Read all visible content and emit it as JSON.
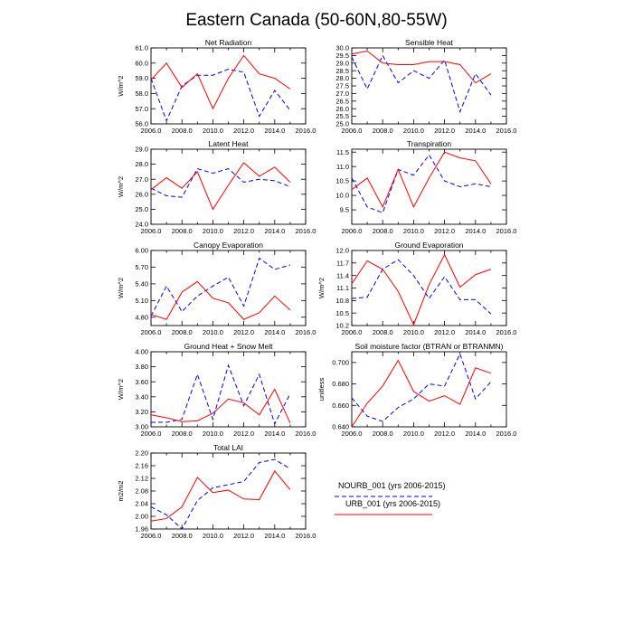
{
  "figure": {
    "title": "Eastern Canada (50-60N,80-55W)"
  },
  "series_styles": {
    "nourb": {
      "color": "#0000ff",
      "dash": "dashed"
    },
    "urb": {
      "color": "#ff0000",
      "dash": "solid"
    }
  },
  "legend": [
    {
      "key": "nourb",
      "label": "NOURB_001 (yrs 2006-2015)"
    },
    {
      "key": "urb",
      "label": "URB_001 (yrs 2006-2015)"
    }
  ],
  "chart_data": [
    {
      "type": "line",
      "title": "Net Radiation",
      "ylabel": "W/m^2",
      "xlim": [
        2006.0,
        2016.0
      ],
      "xticks": [
        "2006.0",
        "2008.0",
        "2010.0",
        "2012.0",
        "2014.0",
        "2016.0"
      ],
      "ylim": [
        56.0,
        61.0
      ],
      "yticks": [
        "56.0",
        "57.0",
        "58.0",
        "59.0",
        "60.0",
        "61.0"
      ],
      "x": [
        2006,
        2007,
        2008,
        2009,
        2010,
        2011,
        2012,
        2013,
        2014,
        2015
      ],
      "series": [
        {
          "name": "NOURB_001 (yrs 2006-2015)",
          "style": "nourb",
          "values": [
            59.0,
            56.2,
            58.5,
            59.2,
            59.2,
            59.6,
            59.4,
            56.5,
            58.2,
            56.9
          ]
        },
        {
          "name": "URB_001 (yrs 2006-2015)",
          "style": "urb",
          "values": [
            58.9,
            60.0,
            58.4,
            59.3,
            57.0,
            59.0,
            60.5,
            59.3,
            59.0,
            58.3
          ]
        }
      ]
    },
    {
      "type": "line",
      "title": "Sensible Heat",
      "ylabel": "",
      "xlim": [
        2006.0,
        2016.0
      ],
      "xticks": [
        "2006.0",
        "2008.0",
        "2010.0",
        "2012.0",
        "2014.0",
        "2016.0"
      ],
      "ylim": [
        25.0,
        30.0
      ],
      "yticks": [
        "25.0",
        "25.5",
        "26.0",
        "26.5",
        "27.0",
        "27.5",
        "28.0",
        "28.5",
        "29.0",
        "29.5",
        "30.0"
      ],
      "x": [
        2006,
        2007,
        2008,
        2009,
        2010,
        2011,
        2012,
        2013,
        2014,
        2015
      ],
      "series": [
        {
          "name": "NOURB_001 (yrs 2006-2015)",
          "style": "nourb",
          "values": [
            29.4,
            27.3,
            29.5,
            27.7,
            28.5,
            28.0,
            29.2,
            25.8,
            28.3,
            26.9
          ]
        },
        {
          "name": "URB_001 (yrs 2006-2015)",
          "style": "urb",
          "values": [
            29.6,
            29.8,
            29.0,
            28.9,
            28.9,
            29.1,
            29.1,
            28.9,
            27.7,
            28.3
          ]
        }
      ]
    },
    {
      "type": "line",
      "title": "Latent Heat",
      "ylabel": "W/m^2",
      "xlim": [
        2006.0,
        2016.0
      ],
      "xticks": [
        "2006.0",
        "2008.0",
        "2010.0",
        "2012.0",
        "2014.0",
        "2016.0"
      ],
      "ylim": [
        24.0,
        29.0
      ],
      "yticks": [
        "24.0",
        "25.0",
        "26.0",
        "27.0",
        "28.0",
        "29.0"
      ],
      "x": [
        2006,
        2007,
        2008,
        2009,
        2010,
        2011,
        2012,
        2013,
        2014,
        2015
      ],
      "series": [
        {
          "name": "NOURB_001 (yrs 2006-2015)",
          "style": "nourb",
          "values": [
            26.4,
            25.9,
            25.8,
            27.7,
            27.4,
            27.7,
            26.8,
            27.0,
            26.9,
            26.5
          ]
        },
        {
          "name": "URB_001 (yrs 2006-2015)",
          "style": "urb",
          "values": [
            26.3,
            27.1,
            26.4,
            27.5,
            25.0,
            26.6,
            28.1,
            27.2,
            27.8,
            26.8
          ]
        }
      ]
    },
    {
      "type": "line",
      "title": "Transpiration",
      "ylabel": "",
      "xlim": [
        2006.0,
        2016.0
      ],
      "xticks": [
        "2006.0",
        "2008.0",
        "2010.0",
        "2012.0",
        "2014.0",
        "2016.0"
      ],
      "ylim": [
        9.0,
        11.6
      ],
      "yticks": [
        "9.5",
        "10.0",
        "10.5",
        "11.0",
        "11.5"
      ],
      "x": [
        2006,
        2007,
        2008,
        2009,
        2010,
        2011,
        2012,
        2013,
        2014,
        2015
      ],
      "series": [
        {
          "name": "NOURB_001 (yrs 2006-2015)",
          "style": "nourb",
          "values": [
            10.6,
            9.6,
            9.4,
            10.9,
            10.7,
            11.4,
            10.5,
            10.3,
            10.4,
            10.3
          ]
        },
        {
          "name": "URB_001 (yrs 2006-2015)",
          "style": "urb",
          "values": [
            10.2,
            10.6,
            9.6,
            10.9,
            9.6,
            10.6,
            11.5,
            11.3,
            11.2,
            10.4
          ]
        }
      ]
    },
    {
      "type": "line",
      "title": "Canopy Evaporation",
      "ylabel": "W/m^2",
      "xlim": [
        2006.0,
        2016.0
      ],
      "xticks": [
        "2006.0",
        "2008.0",
        "2010.0",
        "2012.0",
        "2014.0",
        "2016.0"
      ],
      "ylim": [
        4.65,
        6.0
      ],
      "yticks": [
        "4.80",
        "5.10",
        "5.40",
        "5.70",
        "6.00"
      ],
      "x": [
        2006,
        2007,
        2008,
        2009,
        2010,
        2011,
        2012,
        2013,
        2014,
        2015
      ],
      "series": [
        {
          "name": "NOURB_001 (yrs 2006-2015)",
          "style": "nourb",
          "values": [
            4.82,
            5.36,
            4.9,
            5.18,
            5.36,
            5.52,
            5.0,
            5.86,
            5.66,
            5.74
          ]
        },
        {
          "name": "URB_001 (yrs 2006-2015)",
          "style": "urb",
          "values": [
            4.85,
            4.76,
            5.25,
            5.44,
            5.14,
            5.06,
            4.76,
            4.88,
            5.18,
            4.93
          ]
        }
      ]
    },
    {
      "type": "line",
      "title": "Ground Evaporation",
      "ylabel": "W/m^2",
      "xlim": [
        2006.0,
        2016.0
      ],
      "xticks": [
        "2006.0",
        "2008.0",
        "2010.0",
        "2012.0",
        "2014.0",
        "2016.0"
      ],
      "ylim": [
        10.2,
        12.0
      ],
      "yticks": [
        "10.2",
        "10.5",
        "10.8",
        "11.1",
        "11.4",
        "11.7",
        "12.0"
      ],
      "x": [
        2006,
        2007,
        2008,
        2009,
        2010,
        2011,
        2012,
        2013,
        2014,
        2015
      ],
      "series": [
        {
          "name": "NOURB_001 (yrs 2006-2015)",
          "style": "nourb",
          "values": [
            10.85,
            10.88,
            11.55,
            11.78,
            11.4,
            10.85,
            11.37,
            10.82,
            10.82,
            10.48
          ]
        },
        {
          "name": "URB_001 (yrs 2006-2015)",
          "style": "urb",
          "values": [
            11.2,
            11.75,
            11.55,
            11.02,
            10.22,
            11.18,
            11.9,
            11.12,
            11.42,
            11.55
          ]
        }
      ]
    },
    {
      "type": "line",
      "title": "Ground Heat + Snow Melt",
      "ylabel": "W/m^2",
      "xlim": [
        2006.0,
        2016.0
      ],
      "xticks": [
        "2006.0",
        "2008.0",
        "2010.0",
        "2012.0",
        "2014.0",
        "2016.0"
      ],
      "ylim": [
        3.0,
        4.0
      ],
      "yticks": [
        "3.00",
        "3.20",
        "3.40",
        "3.60",
        "3.80",
        "4.00"
      ],
      "x": [
        2006,
        2007,
        2008,
        2009,
        2010,
        2011,
        2012,
        2013,
        2014,
        2015
      ],
      "series": [
        {
          "name": "NOURB_001 (yrs 2006-2015)",
          "style": "nourb",
          "values": [
            3.06,
            3.06,
            3.1,
            3.7,
            3.1,
            3.82,
            3.28,
            3.7,
            3.04,
            3.44
          ]
        },
        {
          "name": "URB_001 (yrs 2006-2015)",
          "style": "urb",
          "values": [
            3.16,
            3.12,
            3.07,
            3.08,
            3.18,
            3.37,
            3.32,
            3.16,
            3.5,
            3.05
          ]
        }
      ]
    },
    {
      "type": "line",
      "title": "Soil moisture factor (BTRAN or BTRANMN)",
      "ylabel": "unitless",
      "xlim": [
        2006.0,
        2016.0
      ],
      "xticks": [
        "2006.0",
        "2008.0",
        "2010.0",
        "2012.0",
        "2014.0",
        "2016.0"
      ],
      "ylim": [
        0.64,
        0.71
      ],
      "yticks": [
        "0.640",
        "0.660",
        "0.680",
        "0.700"
      ],
      "x": [
        2006,
        2007,
        2008,
        2009,
        2010,
        2011,
        2012,
        2013,
        2014,
        2015
      ],
      "series": [
        {
          "name": "NOURB_001 (yrs 2006-2015)",
          "style": "nourb",
          "values": [
            0.667,
            0.65,
            0.645,
            0.658,
            0.666,
            0.68,
            0.678,
            0.708,
            0.666,
            0.682
          ]
        },
        {
          "name": "URB_001 (yrs 2006-2015)",
          "style": "urb",
          "values": [
            0.64,
            0.662,
            0.678,
            0.702,
            0.673,
            0.664,
            0.669,
            0.661,
            0.695,
            0.69
          ]
        }
      ]
    },
    {
      "type": "line",
      "title": "Total LAI",
      "ylabel": "m2/m2",
      "xlim": [
        2006.0,
        2016.0
      ],
      "xticks": [
        "2006.0",
        "2008.0",
        "2010.0",
        "2012.0",
        "2014.0",
        "2016.0"
      ],
      "ylim": [
        1.96,
        2.2
      ],
      "yticks": [
        "1.96",
        "2.00",
        "2.04",
        "2.08",
        "2.12",
        "2.16",
        "2.20"
      ],
      "x": [
        2006,
        2007,
        2008,
        2009,
        2010,
        2011,
        2012,
        2013,
        2014,
        2015
      ],
      "series": [
        {
          "name": "NOURB_001 (yrs 2006-2015)",
          "style": "nourb",
          "values": [
            2.03,
            2.005,
            1.96,
            2.05,
            2.09,
            2.1,
            2.11,
            2.17,
            2.18,
            2.15
          ]
        },
        {
          "name": "URB_001 (yrs 2006-2015)",
          "style": "urb",
          "values": [
            1.985,
            1.993,
            2.03,
            2.123,
            2.075,
            2.083,
            2.055,
            2.053,
            2.143,
            2.084
          ]
        }
      ]
    }
  ]
}
